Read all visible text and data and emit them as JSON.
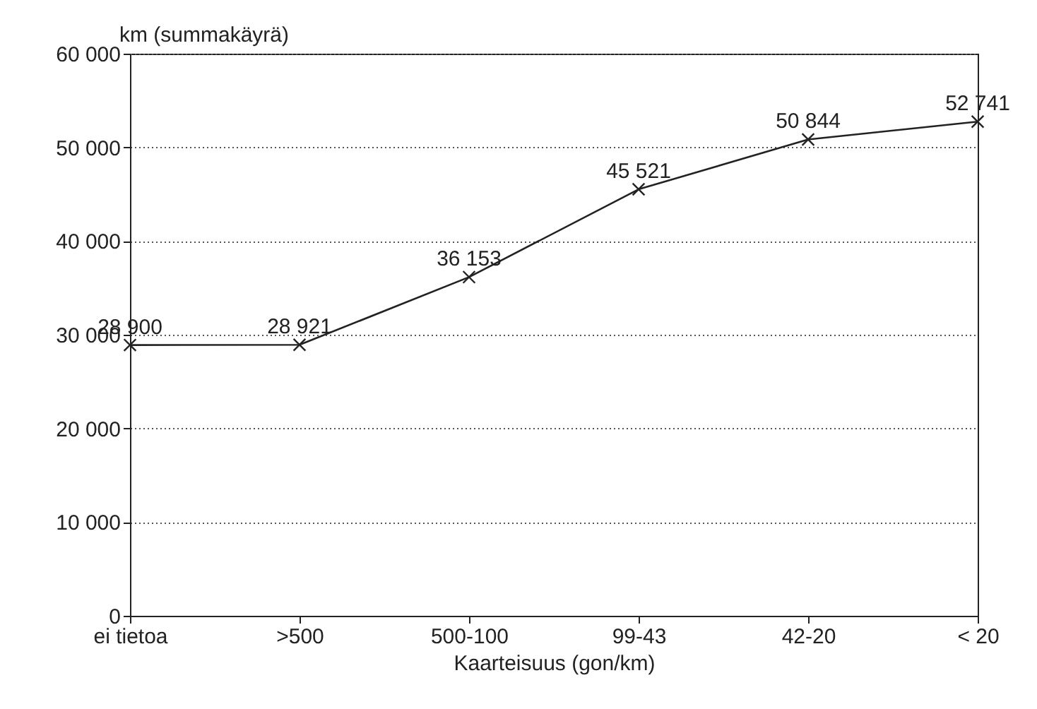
{
  "chart_data": {
    "type": "line",
    "xlabel": "Kaarteisuus (gon/km)",
    "ylabel": "km (summakäyrä)",
    "categories": [
      "ei tietoa",
      ">500",
      "500-100",
      "99-43",
      "42-20",
      "< 20"
    ],
    "values": [
      28900,
      28921,
      36153,
      45521,
      50844,
      52741
    ],
    "value_labels": [
      "28 900",
      "28 921",
      "36 153",
      "45 521",
      "50 844",
      "52 741"
    ],
    "color": "#222222",
    "marker": "cross",
    "line_style": "solid",
    "grid": "y",
    "ylim": [
      0,
      60000
    ],
    "yticks": [
      0,
      {
        "value": 10000,
        "label": "10 000"
      },
      {
        "value": 20000,
        "label": "20 000"
      },
      {
        "value": 30000,
        "label": "30 000"
      },
      {
        "value": 40000,
        "label": "40 000"
      },
      {
        "value": 50000,
        "label": "50 000"
      },
      {
        "value": 60000,
        "label": "60 000"
      }
    ]
  }
}
